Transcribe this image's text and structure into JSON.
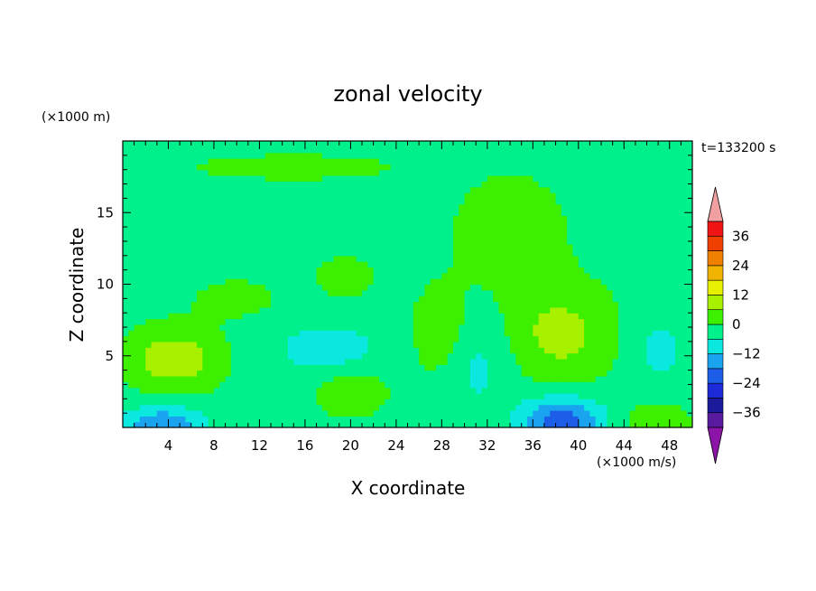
{
  "chart_data": {
    "type": "heatmap",
    "title": "zonal velocity",
    "xlabel": "X coordinate",
    "ylabel": "Z coordinate",
    "y_unit": "(×1000 m)",
    "value_unit": "(×1000 m/s)",
    "time_label": "t=133200 s",
    "xlim": [
      0,
      50
    ],
    "ylim": [
      0,
      20
    ],
    "x_ticks": [
      "4",
      "8",
      "12",
      "16",
      "20",
      "24",
      "28",
      "32",
      "36",
      "40",
      "44",
      "48"
    ],
    "y_ticks": [
      "5",
      "10",
      "15"
    ],
    "x_tick_values": [
      4,
      8,
      12,
      16,
      20,
      24,
      28,
      32,
      36,
      40,
      44,
      48
    ],
    "y_tick_values": [
      5,
      10,
      15
    ],
    "colorbar": {
      "levels": [
        -42,
        -36,
        -30,
        -24,
        -18,
        -12,
        -6,
        0,
        6,
        12,
        18,
        24,
        30,
        36,
        42
      ],
      "labels": [
        "36",
        "24",
        "12",
        "0",
        "−12",
        "−24",
        "−36"
      ],
      "label_values": [
        36,
        24,
        12,
        0,
        -12,
        -24,
        -36
      ],
      "colors": [
        "#5a1aa0",
        "#1a1a9a",
        "#1c2ad8",
        "#1c5ee8",
        "#1aa4f0",
        "#0ae8e0",
        "#00f08c",
        "#3cf000",
        "#a6f000",
        "#e6f000",
        "#f0b400",
        "#f08000",
        "#f04000",
        "#f01414"
      ],
      "extend_low_color": "#8c14a8",
      "extend_high_color": "#f0a0a0"
    },
    "features": [
      {
        "x": 4.5,
        "z": 4.8,
        "sx": 4.0,
        "sz": 2.2,
        "value": 12
      },
      {
        "x": 3.5,
        "z": 0.2,
        "sx": 3.5,
        "sz": 1.3,
        "value": -16
      },
      {
        "x": 38.5,
        "z": 0.5,
        "sx": 3.5,
        "sz": 1.6,
        "value": -20
      },
      {
        "x": 38.5,
        "z": 6.5,
        "sx": 4.5,
        "sz": 3.2,
        "value": 10
      },
      {
        "x": 31,
        "z": 4.5,
        "sx": 3.0,
        "sz": 3.5,
        "value": -6
      },
      {
        "x": 19.5,
        "z": 10.5,
        "sx": 2.5,
        "sz": 1.5,
        "value": 5
      },
      {
        "x": 20,
        "z": 2.5,
        "sx": 3.0,
        "sz": 1.5,
        "value": 8
      },
      {
        "x": 18,
        "z": 5.5,
        "sx": 5.0,
        "sz": 2.0,
        "value": -7
      },
      {
        "x": 15,
        "z": 18.2,
        "sx": 8.0,
        "sz": 0.8,
        "value": 6
      },
      {
        "x": 34,
        "z": 13.5,
        "sx": 6.0,
        "sz": 5.0,
        "value": 4
      },
      {
        "x": 28,
        "z": 6.5,
        "sx": 2.5,
        "sz": 3.0,
        "value": 7
      },
      {
        "x": 47,
        "z": 5.5,
        "sx": 2.5,
        "sz": 2.5,
        "value": -6
      },
      {
        "x": 47,
        "z": 0.5,
        "sx": 2.5,
        "sz": 1.2,
        "value": 8
      },
      {
        "x": 10,
        "z": 9.0,
        "sx": 4.0,
        "sz": 1.5,
        "value": 4
      }
    ],
    "background_value": -2
  }
}
